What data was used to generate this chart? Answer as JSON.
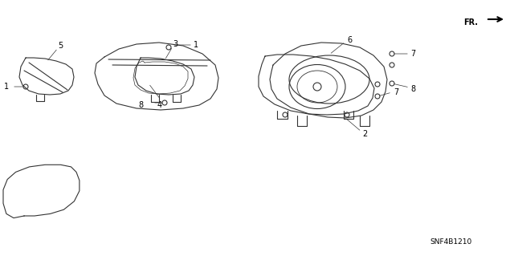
{
  "title": "",
  "background_color": "#ffffff",
  "part_numbers": [
    1,
    2,
    3,
    4,
    5,
    6,
    7,
    8
  ],
  "diagram_code": "SNF4B1210",
  "fr_label": "FR.",
  "line_color": "#333333",
  "text_color": "#000000"
}
